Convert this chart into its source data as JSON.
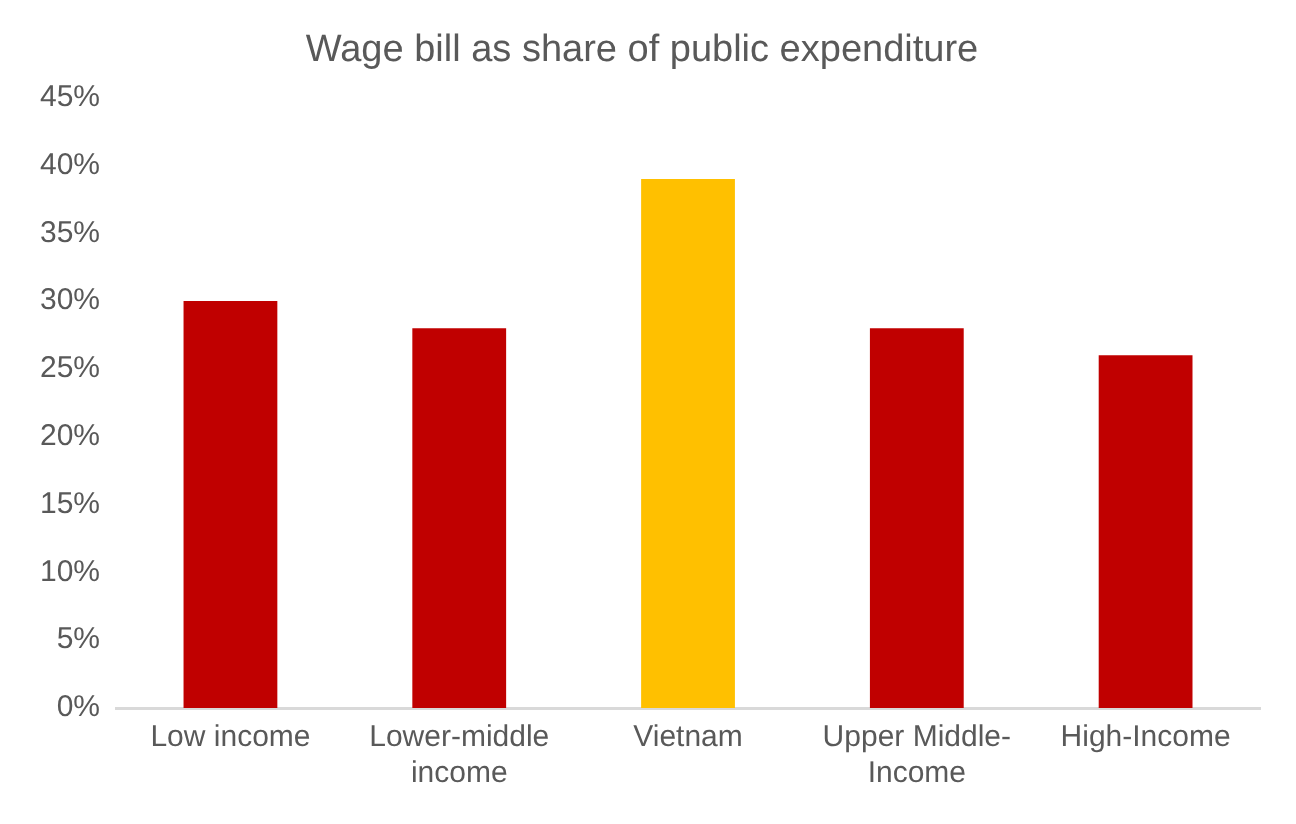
{
  "chart_data": {
    "type": "bar",
    "title": "Wage bill as share of public expenditure",
    "categories": [
      "Low income",
      "Lower-middle income",
      "Vietnam",
      "Upper Middle-Income",
      "High-Income"
    ],
    "values": [
      30,
      28,
      39,
      28,
      26
    ],
    "colors": [
      "#c00000",
      "#c00000",
      "#ffc000",
      "#c00000",
      "#c00000"
    ],
    "ylim": [
      0,
      45
    ],
    "yticks": [
      {
        "value": 0,
        "label": "0%"
      },
      {
        "value": 5,
        "label": "5%"
      },
      {
        "value": 10,
        "label": "10%"
      },
      {
        "value": 15,
        "label": "15%"
      },
      {
        "value": 20,
        "label": "20%"
      },
      {
        "value": 25,
        "label": "25%"
      },
      {
        "value": 30,
        "label": "30%"
      },
      {
        "value": 35,
        "label": "35%"
      },
      {
        "value": 40,
        "label": "40%"
      },
      {
        "value": 45,
        "label": "45%"
      }
    ],
    "grid": false,
    "legend": false
  }
}
